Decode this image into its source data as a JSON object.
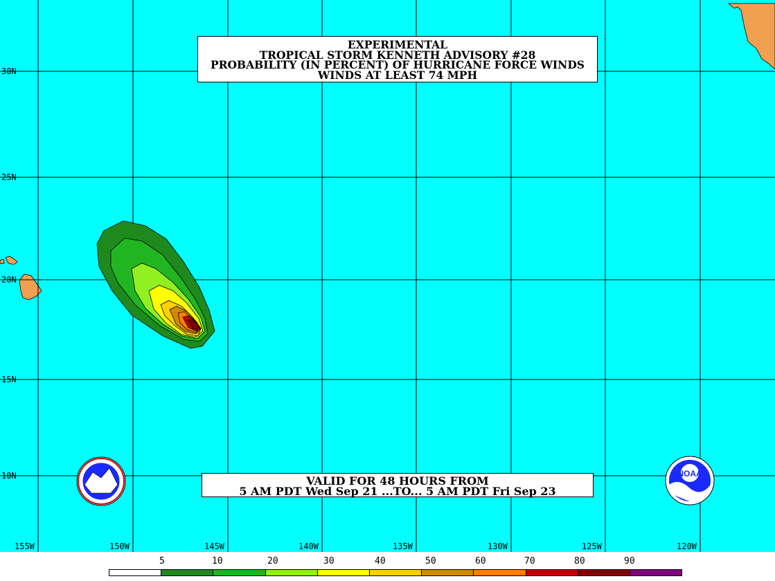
{
  "title": {
    "line1": "EXPERIMENTAL",
    "line2": "TROPICAL STORM KENNETH ADVISORY #28",
    "line3": "PROBABILITY (IN PERCENT) OF HURRICANE FORCE WINDS",
    "line4": "WINDS AT LEAST 74 MPH"
  },
  "valid": {
    "line1": "VALID FOR 48 HOURS FROM",
    "line2": "5 AM PDT Wed Sep 21 ...TO... 5 AM PDT Fri Sep 23"
  },
  "lat_labels": [
    "30N",
    "25N",
    "20N",
    "15N",
    "10N"
  ],
  "lon_labels": [
    "155W",
    "150W",
    "145W",
    "140W",
    "135W",
    "130W",
    "125W",
    "120W"
  ],
  "legend": {
    "ticks": [
      "5",
      "10",
      "20",
      "30",
      "40",
      "50",
      "60",
      "70",
      "80",
      "90"
    ],
    "colors": [
      "#ffffff",
      "#1e8a1e",
      "#22b522",
      "#22d822",
      "#90f020",
      "#ffff00",
      "#ffd000",
      "#d08a00",
      "#ff7f00",
      "#c00000",
      "#800000",
      "#800080"
    ]
  },
  "colors": {
    "ocean": "#00ffff",
    "land": "#f0a050",
    "grid": "#000000"
  },
  "logos": {
    "nws": "nws-seal",
    "noaa": "NOAA"
  }
}
